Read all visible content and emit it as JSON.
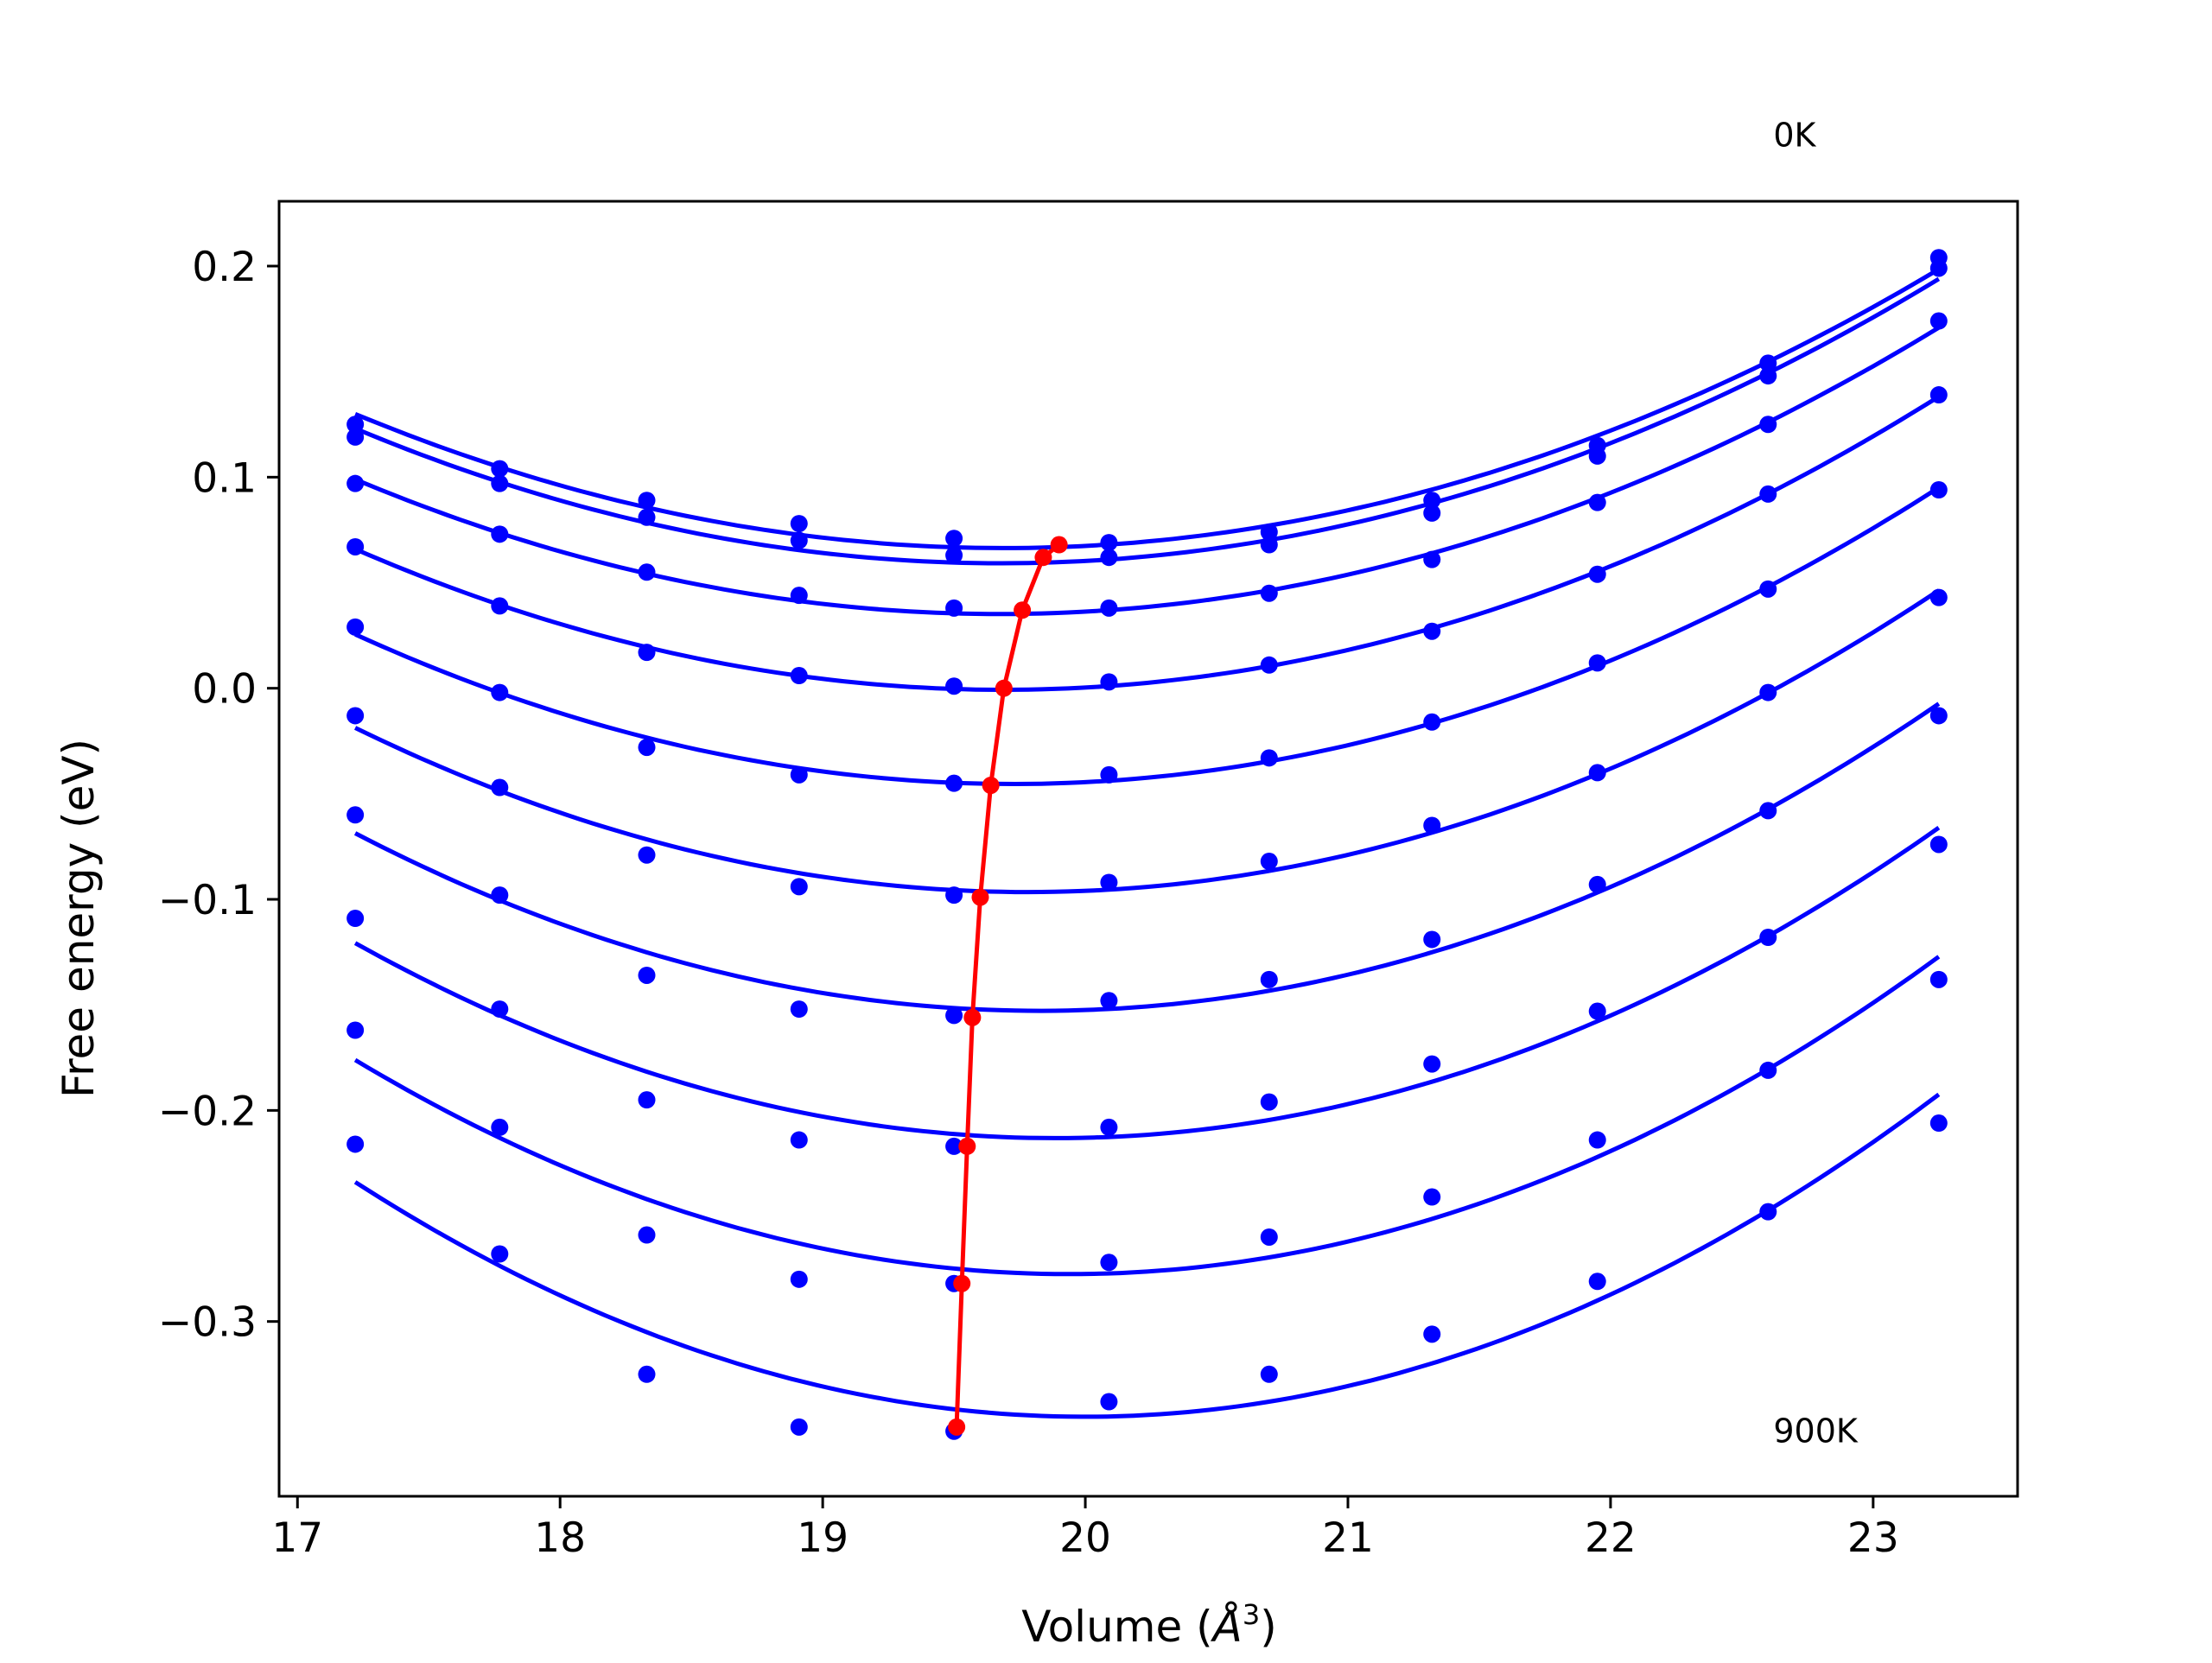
{
  "chart_data": {
    "type": "line",
    "xlabel": "Volume (Å³)",
    "xlabel_main": "Volume (",
    "xlabel_unit": "Å",
    "xlabel_sup": "3",
    "xlabel_close": ")",
    "ylabel": "Free energy (eV)",
    "xlim": [
      16.93,
      23.55
    ],
    "ylim": [
      -0.3828,
      0.2307
    ],
    "x_ticks": [
      17,
      18,
      19,
      20,
      21,
      22,
      23
    ],
    "x_tick_labels": [
      "17",
      "18",
      "19",
      "20",
      "21",
      "22",
      "23"
    ],
    "y_ticks": [
      0.2,
      0.1,
      0.0,
      -0.1,
      -0.2,
      -0.3
    ],
    "y_tick_labels": [
      "0.2",
      "0.1",
      "0.0",
      "−0.1",
      "−0.2",
      "−0.3"
    ],
    "annotations": [
      {
        "text": "0K",
        "x": 22.62,
        "y": 0.262
      },
      {
        "text": "900K",
        "x": 22.62,
        "y": -0.352
      }
    ],
    "grid": false,
    "colors": {
      "series": "#0000ff",
      "minimum_path": "#ff0000"
    },
    "x": [
      17.22,
      17.77,
      18.33,
      18.91,
      19.5,
      20.09,
      20.7,
      21.32,
      21.95,
      22.6,
      23.25
    ],
    "series": [
      {
        "values": [
          0.125,
          0.104,
          0.089,
          0.078,
          0.071,
          0.069,
          0.074,
          0.089,
          0.115,
          0.154,
          0.204
        ]
      },
      {
        "values": [
          0.119,
          0.097,
          0.081,
          0.07,
          0.063,
          0.062,
          0.068,
          0.083,
          0.11,
          0.148,
          0.199
        ]
      },
      {
        "values": [
          0.097,
          0.073,
          0.055,
          0.044,
          0.038,
          0.038,
          0.045,
          0.061,
          0.088,
          0.125,
          0.174
        ]
      },
      {
        "values": [
          0.067,
          0.039,
          0.017,
          0.006,
          0.001,
          0.003,
          0.011,
          0.027,
          0.054,
          0.092,
          0.139
        ]
      },
      {
        "values": [
          0.029,
          -0.002,
          -0.028,
          -0.041,
          -0.045,
          -0.041,
          -0.033,
          -0.016,
          0.012,
          0.047,
          0.094
        ]
      },
      {
        "values": [
          -0.013,
          -0.047,
          -0.079,
          -0.094,
          -0.098,
          -0.092,
          -0.082,
          -0.065,
          -0.04,
          -0.002,
          0.043
        ]
      },
      {
        "values": [
          -0.06,
          -0.098,
          -0.136,
          -0.152,
          -0.155,
          -0.148,
          -0.138,
          -0.119,
          -0.093,
          -0.058,
          -0.013
        ]
      },
      {
        "values": [
          -0.109,
          -0.152,
          -0.195,
          -0.214,
          -0.217,
          -0.208,
          -0.196,
          -0.178,
          -0.153,
          -0.118,
          -0.074
        ]
      },
      {
        "values": [
          -0.162,
          -0.208,
          -0.259,
          -0.28,
          -0.282,
          -0.272,
          -0.26,
          -0.241,
          -0.214,
          -0.181,
          -0.138
        ]
      },
      {
        "values": [
          -0.216,
          -0.268,
          -0.325,
          -0.35,
          -0.352,
          -0.338,
          -0.325,
          -0.306,
          -0.281,
          -0.248,
          -0.206
        ]
      }
    ],
    "minimum_path": {
      "x": [
        19.9,
        19.84,
        19.76,
        19.69,
        19.64,
        19.6,
        19.57,
        19.55,
        19.53,
        19.51
      ],
      "y": [
        0.068,
        0.062,
        0.037,
        0.0,
        -0.046,
        -0.099,
        -0.156,
        -0.217,
        -0.282,
        -0.35
      ]
    }
  }
}
